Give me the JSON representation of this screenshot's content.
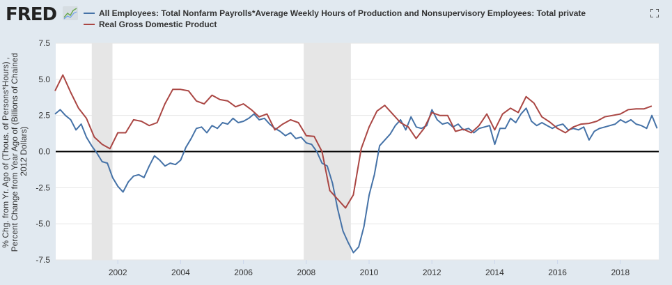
{
  "header": {
    "logo": "FRED",
    "fullscreen_icon": "expand-icon"
  },
  "colors": {
    "series1": "#4572a7",
    "series2": "#aa4643",
    "recession": "#e6e6e6",
    "zero_line": "#000000"
  },
  "chart_data": {
    "type": "line",
    "title": "",
    "ylabel_lines": [
      "% Chg. from Yr. Ago of (Thous. of Persons*Hours) ,",
      "Percent Change from Year Ago of (Billions of Chained",
      "2012 Dollars)"
    ],
    "xlabel": "",
    "ylim": [
      -7.5,
      7.5
    ],
    "xlim": [
      2000.0,
      2019.2
    ],
    "yticks": [
      "7.5",
      "5.0",
      "2.5",
      "0.0",
      "-2.5",
      "-5.0",
      "-7.5"
    ],
    "ytick_values": [
      7.5,
      5.0,
      2.5,
      0.0,
      -2.5,
      -5.0,
      -7.5
    ],
    "xticks": [
      "2002",
      "2004",
      "2006",
      "2008",
      "2010",
      "2012",
      "2014",
      "2016",
      "2018"
    ],
    "xtick_values": [
      2002,
      2004,
      2006,
      2008,
      2010,
      2012,
      2014,
      2016,
      2018
    ],
    "grid": true,
    "legend_position": "top-left",
    "recessions": [
      [
        2001.17,
        2001.83
      ],
      [
        2007.92,
        2009.42
      ]
    ],
    "series": [
      {
        "name": "All Employees: Total Nonfarm Payrolls*Average Weekly Hours of Production and Nonsupervisory Employees: Total private",
        "start": 2000.0,
        "step": 0.1667,
        "values": [
          2.6,
          2.9,
          2.5,
          2.2,
          1.5,
          1.9,
          1.0,
          0.4,
          -0.1,
          -0.7,
          -0.8,
          -1.8,
          -2.4,
          -2.8,
          -2.1,
          -1.7,
          -1.6,
          -1.8,
          -1.0,
          -0.3,
          -0.6,
          -1.0,
          -0.8,
          -0.9,
          -0.6,
          0.3,
          0.9,
          1.6,
          1.7,
          1.3,
          1.8,
          1.6,
          2.0,
          1.9,
          2.3,
          2.0,
          2.1,
          2.3,
          2.6,
          2.2,
          2.3,
          1.9,
          1.6,
          1.4,
          1.1,
          1.3,
          0.9,
          1.0,
          0.6,
          0.5,
          0.0,
          -0.8,
          -1.0,
          -2.2,
          -4.0,
          -5.5,
          -6.3,
          -7.0,
          -6.6,
          -5.2,
          -3.0,
          -1.6,
          0.4,
          0.8,
          1.2,
          1.8,
          2.2,
          1.5,
          2.4,
          1.7,
          1.6,
          1.8,
          2.9,
          2.2,
          1.9,
          2.0,
          1.7,
          1.9,
          1.5,
          1.6,
          1.3,
          1.6,
          1.7,
          1.8,
          0.5,
          1.6,
          1.6,
          2.3,
          2.0,
          2.6,
          3.0,
          2.1,
          1.8,
          2.0,
          1.8,
          1.6,
          1.8,
          1.9,
          1.5,
          1.6,
          1.5,
          1.7,
          0.8,
          1.4,
          1.6,
          1.7,
          1.8,
          1.9,
          2.2,
          2.0,
          2.2,
          1.9,
          1.8,
          1.6,
          2.5,
          1.6
        ]
      },
      {
        "name": "Real Gross Domestic Product",
        "start": 2000.0,
        "step": 0.25,
        "values": [
          4.2,
          5.3,
          4.1,
          3.0,
          2.3,
          1.0,
          0.5,
          0.2,
          1.3,
          1.3,
          2.2,
          2.1,
          1.8,
          2.0,
          3.3,
          4.3,
          4.3,
          4.2,
          3.5,
          3.3,
          3.9,
          3.6,
          3.5,
          3.1,
          3.3,
          2.9,
          2.4,
          2.6,
          1.5,
          1.9,
          2.2,
          2.0,
          1.1,
          1.05,
          0.0,
          -2.7,
          -3.3,
          -3.9,
          -3.0,
          0.2,
          1.7,
          2.8,
          3.2,
          2.6,
          2.0,
          1.7,
          0.9,
          1.6,
          2.7,
          2.5,
          2.5,
          1.4,
          1.55,
          1.3,
          1.8,
          2.6,
          1.5,
          2.6,
          3.0,
          2.7,
          3.8,
          3.35,
          2.4,
          2.05,
          1.6,
          1.3,
          1.7,
          1.9,
          1.95,
          2.1,
          2.4,
          2.5,
          2.6,
          2.9,
          2.95,
          2.95,
          3.15
        ]
      }
    ]
  }
}
